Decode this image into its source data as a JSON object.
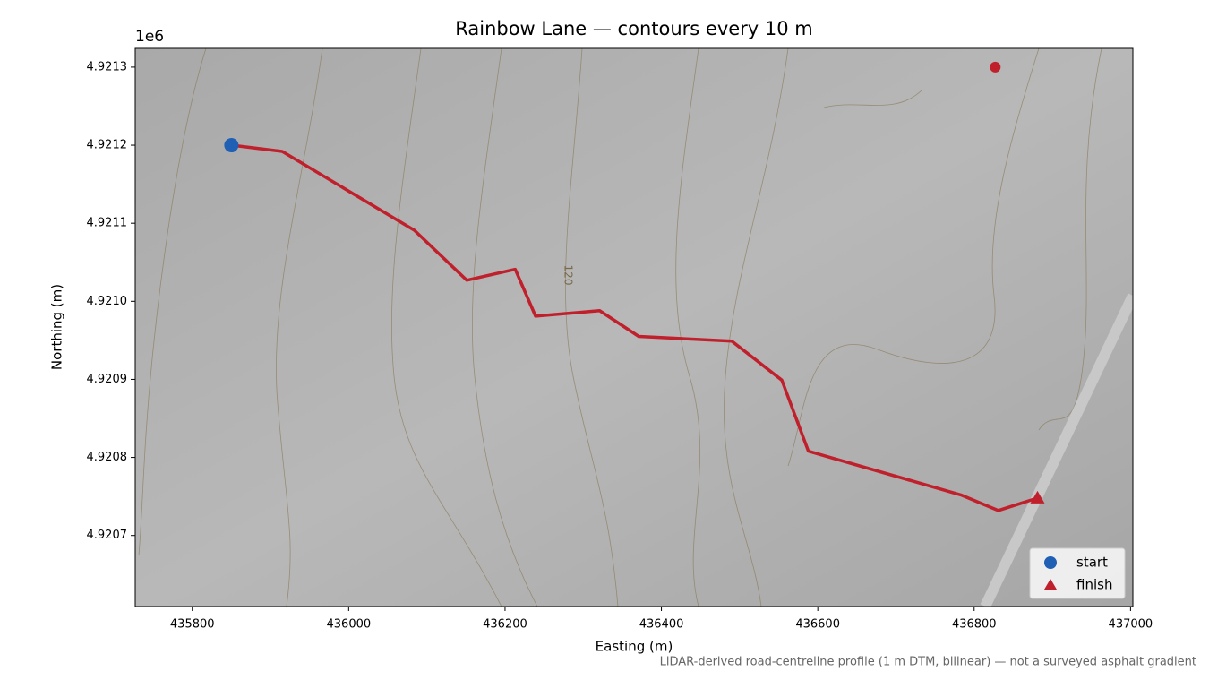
{
  "chart_data": {
    "type": "line",
    "title": "Rainbow Lane — contours every 10 m",
    "xlabel": "Easting (m)",
    "ylabel": "Northing (m)",
    "y_offset_label": "1e6",
    "note": "LiDAR-derived road-centreline profile (1 m DTM, bilinear) — not a surveyed asphalt gradient",
    "contour_label": "120",
    "xlim": [
      435727,
      437003
    ],
    "ylim": [
      4920609,
      4921324
    ],
    "xticks": [
      435800,
      436000,
      436200,
      436400,
      436600,
      436800,
      437000
    ],
    "yticks": [
      {
        "value": 4920700,
        "label": "4.9207"
      },
      {
        "value": 4920800,
        "label": "4.9208"
      },
      {
        "value": 4920900,
        "label": "4.9209"
      },
      {
        "value": 4921000,
        "label": "4.9210"
      },
      {
        "value": 4921100,
        "label": "4.9211"
      },
      {
        "value": 4921200,
        "label": "4.9212"
      },
      {
        "value": 4921300,
        "label": "4.9213"
      }
    ],
    "route": {
      "color": "#c0202c",
      "x": [
        435850,
        435915,
        436084,
        436151,
        436213,
        436239,
        436321,
        436371,
        436490,
        436554,
        436588,
        436783,
        436831,
        436881
      ],
      "y": [
        4921200,
        4921192,
        4921091,
        4921027,
        4921041,
        4920981,
        4920988,
        4920955,
        4920949,
        4920899,
        4920808,
        4920752,
        4920732,
        4920748
      ]
    },
    "markers": [
      {
        "name": "start",
        "shape": "circle",
        "color": "#1f5fb4",
        "x": 435850,
        "y": 4921200
      },
      {
        "name": "finish",
        "shape": "triangle",
        "color": "#c0202c",
        "x": 436881,
        "y": 4920748
      }
    ],
    "point": {
      "color": "#c0202c",
      "x": 436827,
      "y": 4921300
    },
    "legend": "lower right"
  }
}
